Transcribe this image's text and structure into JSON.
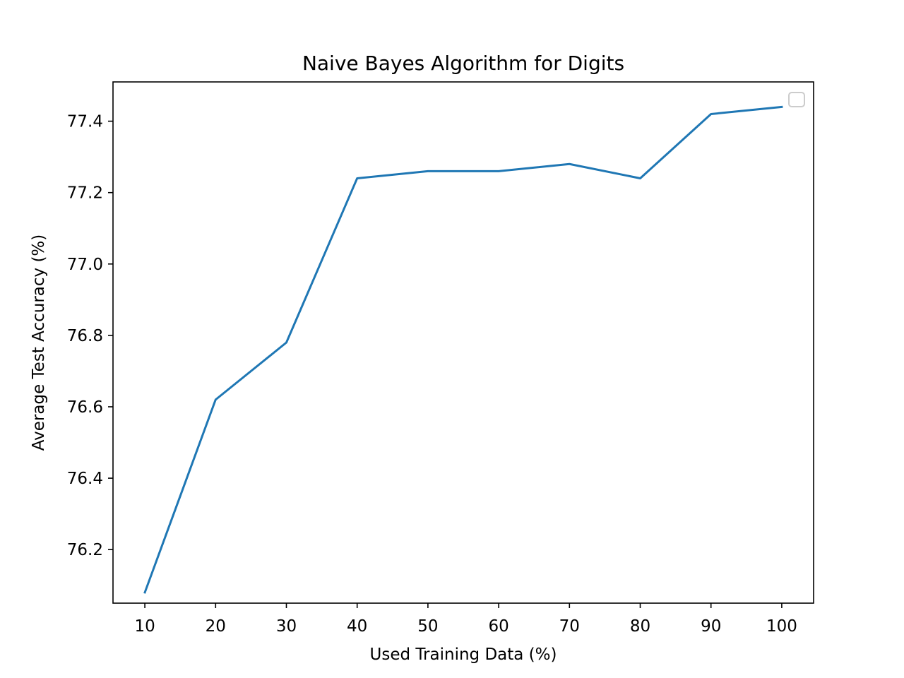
{
  "chart_data": {
    "type": "line",
    "title": "Naive Bayes Algorithm for Digits",
    "xlabel": "Used Training Data (%)",
    "ylabel": "Average Test Accuracy (%)",
    "x": [
      10,
      20,
      30,
      40,
      50,
      60,
      70,
      80,
      90,
      100
    ],
    "series": [
      {
        "values": [
          76.08,
          76.62,
          76.78,
          77.24,
          77.26,
          77.26,
          77.28,
          77.24,
          77.42,
          77.44
        ]
      }
    ],
    "xlim": [
      5.5,
      104.5
    ],
    "ylim": [
      76.05,
      77.51
    ],
    "xticks": [
      10,
      20,
      30,
      40,
      50,
      60,
      70,
      80,
      90,
      100
    ],
    "xtick_labels": [
      "10",
      "20",
      "30",
      "40",
      "50",
      "60",
      "70",
      "80",
      "90",
      "100"
    ],
    "yticks": [
      76.2,
      76.4,
      76.6,
      76.8,
      77.0,
      77.2,
      77.4
    ],
    "ytick_labels": [
      "76.2",
      "76.4",
      "76.6",
      "76.8",
      "77.0",
      "77.2",
      "77.4"
    ],
    "grid": false,
    "legend": {
      "position": "top-right",
      "entries": []
    },
    "colors": {
      "line": "#1f77b4",
      "axes": "#000000",
      "legend_border": "#cccccc"
    }
  }
}
